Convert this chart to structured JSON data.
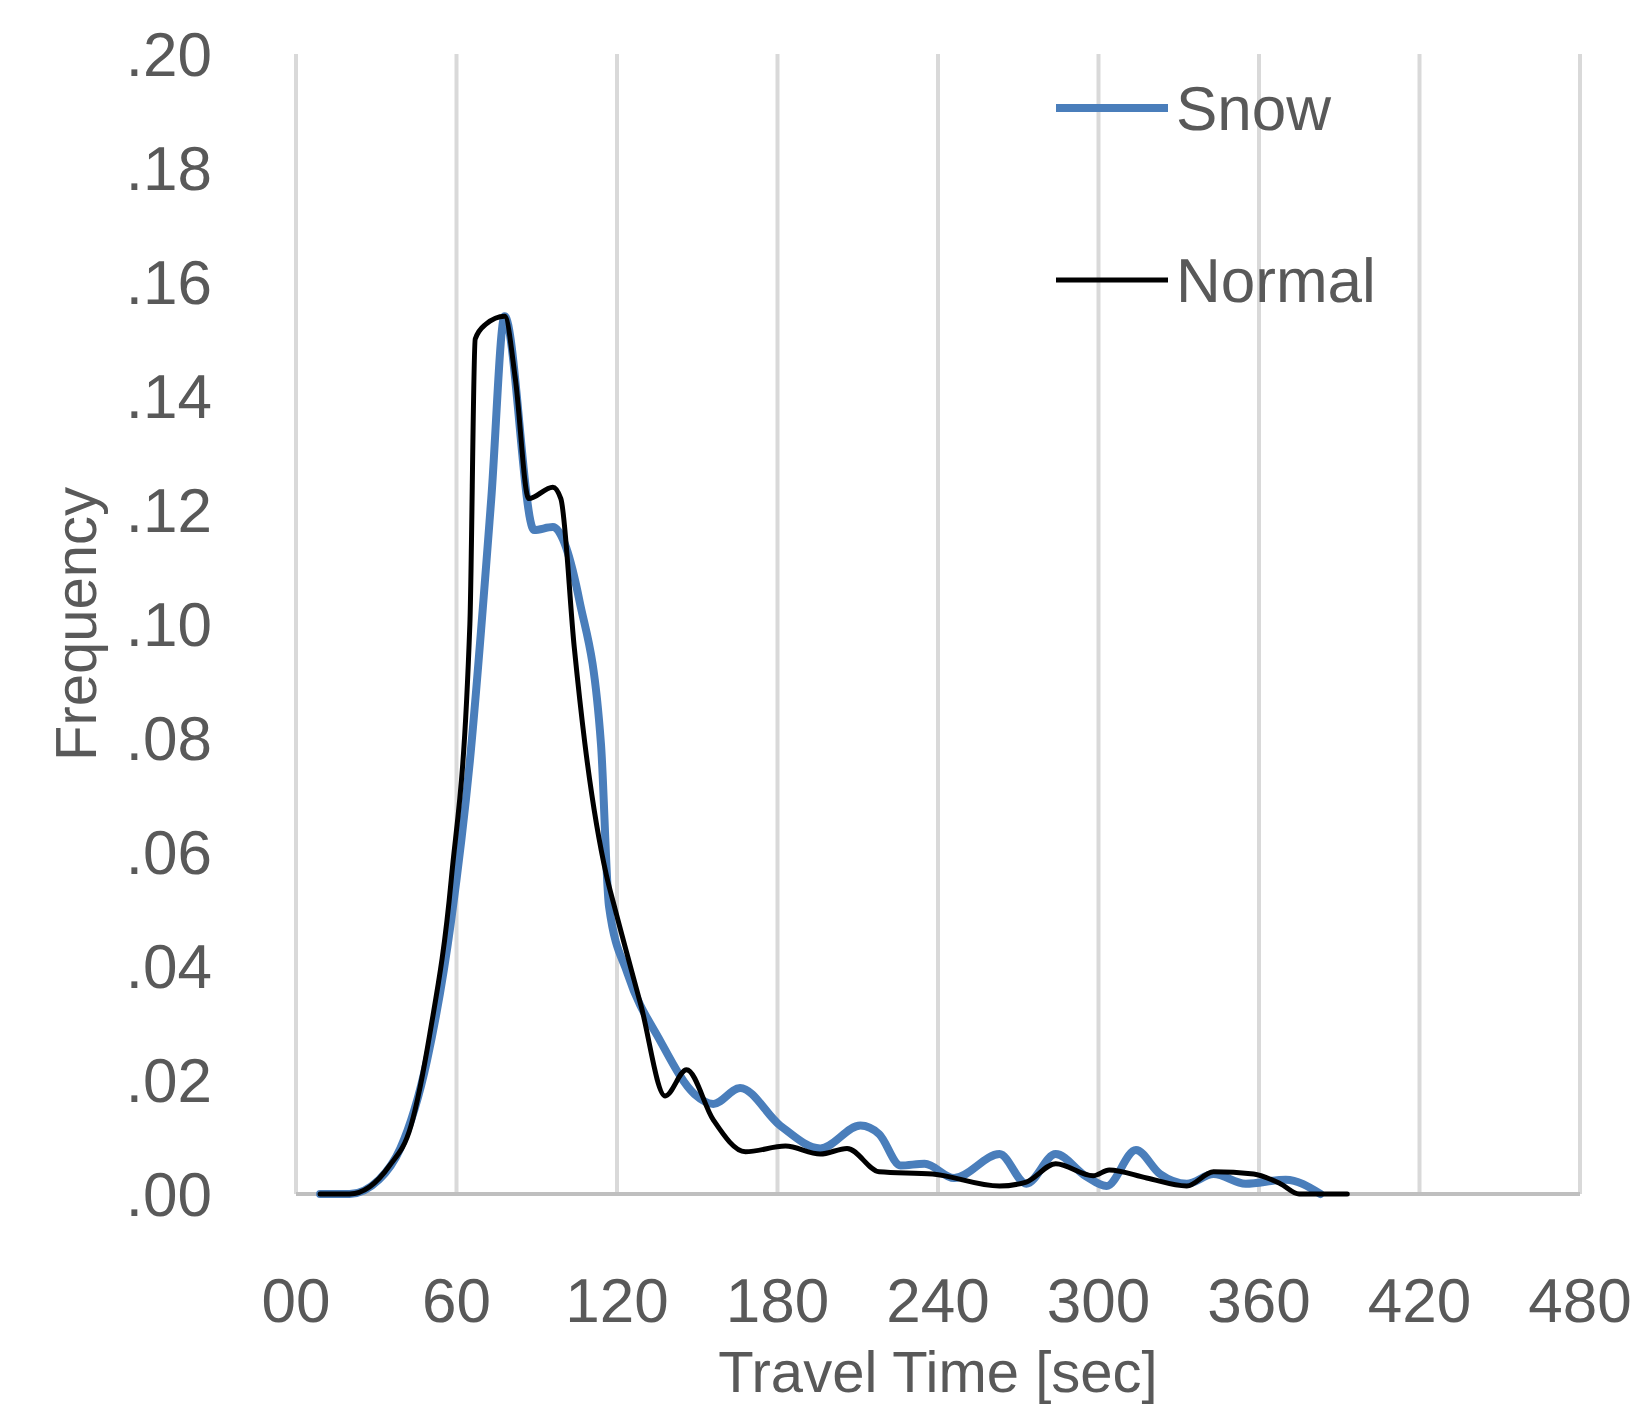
{
  "chart_data": {
    "type": "line",
    "xlabel": "Travel Time [sec]",
    "ylabel": "Frequency",
    "xlim": [
      0,
      480
    ],
    "xticks": [
      {
        "value": 0,
        "label": "00"
      },
      60,
      120,
      180,
      240,
      300,
      360,
      420,
      480
    ],
    "ylim": [
      0,
      0.2
    ],
    "yticks": [
      {
        "value": 0,
        "label": ".00"
      },
      {
        "value": 0.02,
        "label": ".02"
      },
      {
        "value": 0.04,
        "label": ".04"
      },
      {
        "value": 0.06,
        "label": ".06"
      },
      {
        "value": 0.08,
        "label": ".08"
      },
      {
        "value": 0.1,
        "label": ".10"
      },
      {
        "value": 0.12,
        "label": ".12"
      },
      {
        "value": 0.14,
        "label": ".14"
      },
      {
        "value": 0.16,
        "label": ".16"
      },
      {
        "value": 0.18,
        "label": ".18"
      },
      {
        "value": 0.2,
        "label": ".20"
      }
    ],
    "grid": "x",
    "legend": "top right",
    "marker": "none",
    "line_style": "solid",
    "series": [
      {
        "name": "Snow",
        "color": "#4a7ebb",
        "x": [
          9,
          20,
          31,
          39,
          49,
          58,
          65,
          73,
          78,
          89,
          96,
          106,
          114,
          117,
          124,
          136,
          149,
          156,
          166,
          181,
          196,
          211,
          218,
          226,
          235,
          246,
          263,
          273,
          284,
          295,
          303,
          314,
          323,
          333,
          343,
          355,
          370,
          383
        ],
        "values": [
          0,
          0,
          0.0025,
          0.008,
          0.0235,
          0.048,
          0.076,
          0.122,
          0.154,
          0.1165,
          0.117,
          0.104,
          0.079,
          0.0505,
          0.0386,
          0.027,
          0.0175,
          0.0158,
          0.0186,
          0.012,
          0.008,
          0.012,
          0.0105,
          0.005,
          0.0053,
          0.0028,
          0.007,
          0.0018,
          0.007,
          0.0032,
          0.0014,
          0.0077,
          0.0035,
          0.0018,
          0.0035,
          0.0018,
          0.0025,
          0
        ]
      },
      {
        "name": "Normal",
        "color": "#000000",
        "x": [
          9,
          20,
          35,
          43,
          50,
          58,
          65,
          67,
          71,
          78,
          82,
          87,
          96,
          99,
          104,
          108,
          116,
          119,
          129,
          138,
          146,
          156,
          168,
          183,
          196,
          206,
          218,
          238,
          263,
          273,
          284,
          298,
          304,
          318,
          333,
          343,
          358,
          368,
          375,
          393
        ],
        "values": [
          0,
          0,
          0.005,
          0.012,
          0.028,
          0.055,
          0.1,
          0.15,
          0.1526,
          0.154,
          0.143,
          0.122,
          0.124,
          0.122,
          0.096,
          0.079,
          0.056,
          0.0505,
          0.033,
          0.0172,
          0.0218,
          0.013,
          0.0074,
          0.0084,
          0.007,
          0.008,
          0.0039,
          0.0035,
          0.0014,
          0.0021,
          0.0053,
          0.0032,
          0.0042,
          0.0028,
          0.0014,
          0.0039,
          0.0035,
          0.0018,
          0,
          0
        ]
      }
    ]
  }
}
